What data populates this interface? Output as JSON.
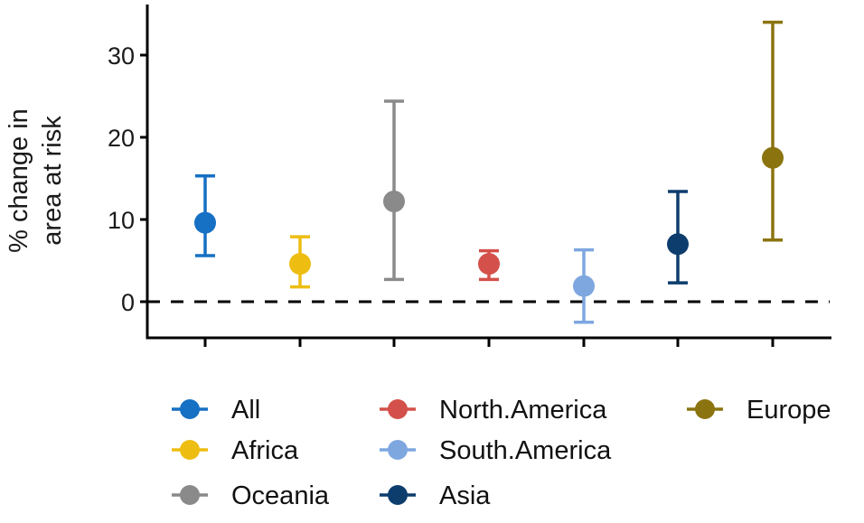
{
  "chart_data": {
    "type": "scatter",
    "subtype": "point-with-error-bars",
    "title": "",
    "xlabel": "",
    "ylabel_lines": [
      "% change in",
      "area at risk"
    ],
    "ylim": [
      -4.3,
      36.5
    ],
    "yticks": [
      0,
      10,
      20,
      30
    ],
    "ytick_labels": [
      "0",
      "10",
      "20",
      "30"
    ],
    "reference_line": {
      "y": 0,
      "style": "dashed",
      "color": "#000000"
    },
    "grid": false,
    "legend_position": "bottom",
    "categories": [
      "All",
      "Africa",
      "Oceania",
      "North.America",
      "South.America",
      "Asia",
      "Europe"
    ],
    "series": [
      {
        "name": "All",
        "color": "#1670c4",
        "value": 9.6,
        "lower": 5.6,
        "upper": 15.3
      },
      {
        "name": "Africa",
        "color": "#eebd12",
        "value": 4.6,
        "lower": 1.8,
        "upper": 7.9
      },
      {
        "name": "Oceania",
        "color": "#8a8a8a",
        "value": 12.2,
        "lower": 2.7,
        "upper": 24.4
      },
      {
        "name": "North.America",
        "color": "#d4504a",
        "value": 4.6,
        "lower": 2.7,
        "upper": 6.2
      },
      {
        "name": "South.America",
        "color": "#7ea7e0",
        "value": 1.9,
        "lower": -2.5,
        "upper": 6.3
      },
      {
        "name": "Asia",
        "color": "#0d3d6d",
        "value": 7.0,
        "lower": 2.3,
        "upper": 13.4
      },
      {
        "name": "Europe",
        "color": "#8b7410",
        "value": 17.5,
        "lower": 7.5,
        "upper": 34.0
      }
    ]
  },
  "legend": {
    "items": [
      {
        "label": "All",
        "col": 0,
        "row": 0
      },
      {
        "label": "Africa",
        "col": 0,
        "row": 1
      },
      {
        "label": "Oceania",
        "col": 0,
        "row": 2
      },
      {
        "label": "North.America",
        "col": 1,
        "row": 0
      },
      {
        "label": "South.America",
        "col": 1,
        "row": 1
      },
      {
        "label": "Asia",
        "col": 1,
        "row": 2
      },
      {
        "label": "Europe",
        "col": 2,
        "row": 0
      }
    ]
  }
}
